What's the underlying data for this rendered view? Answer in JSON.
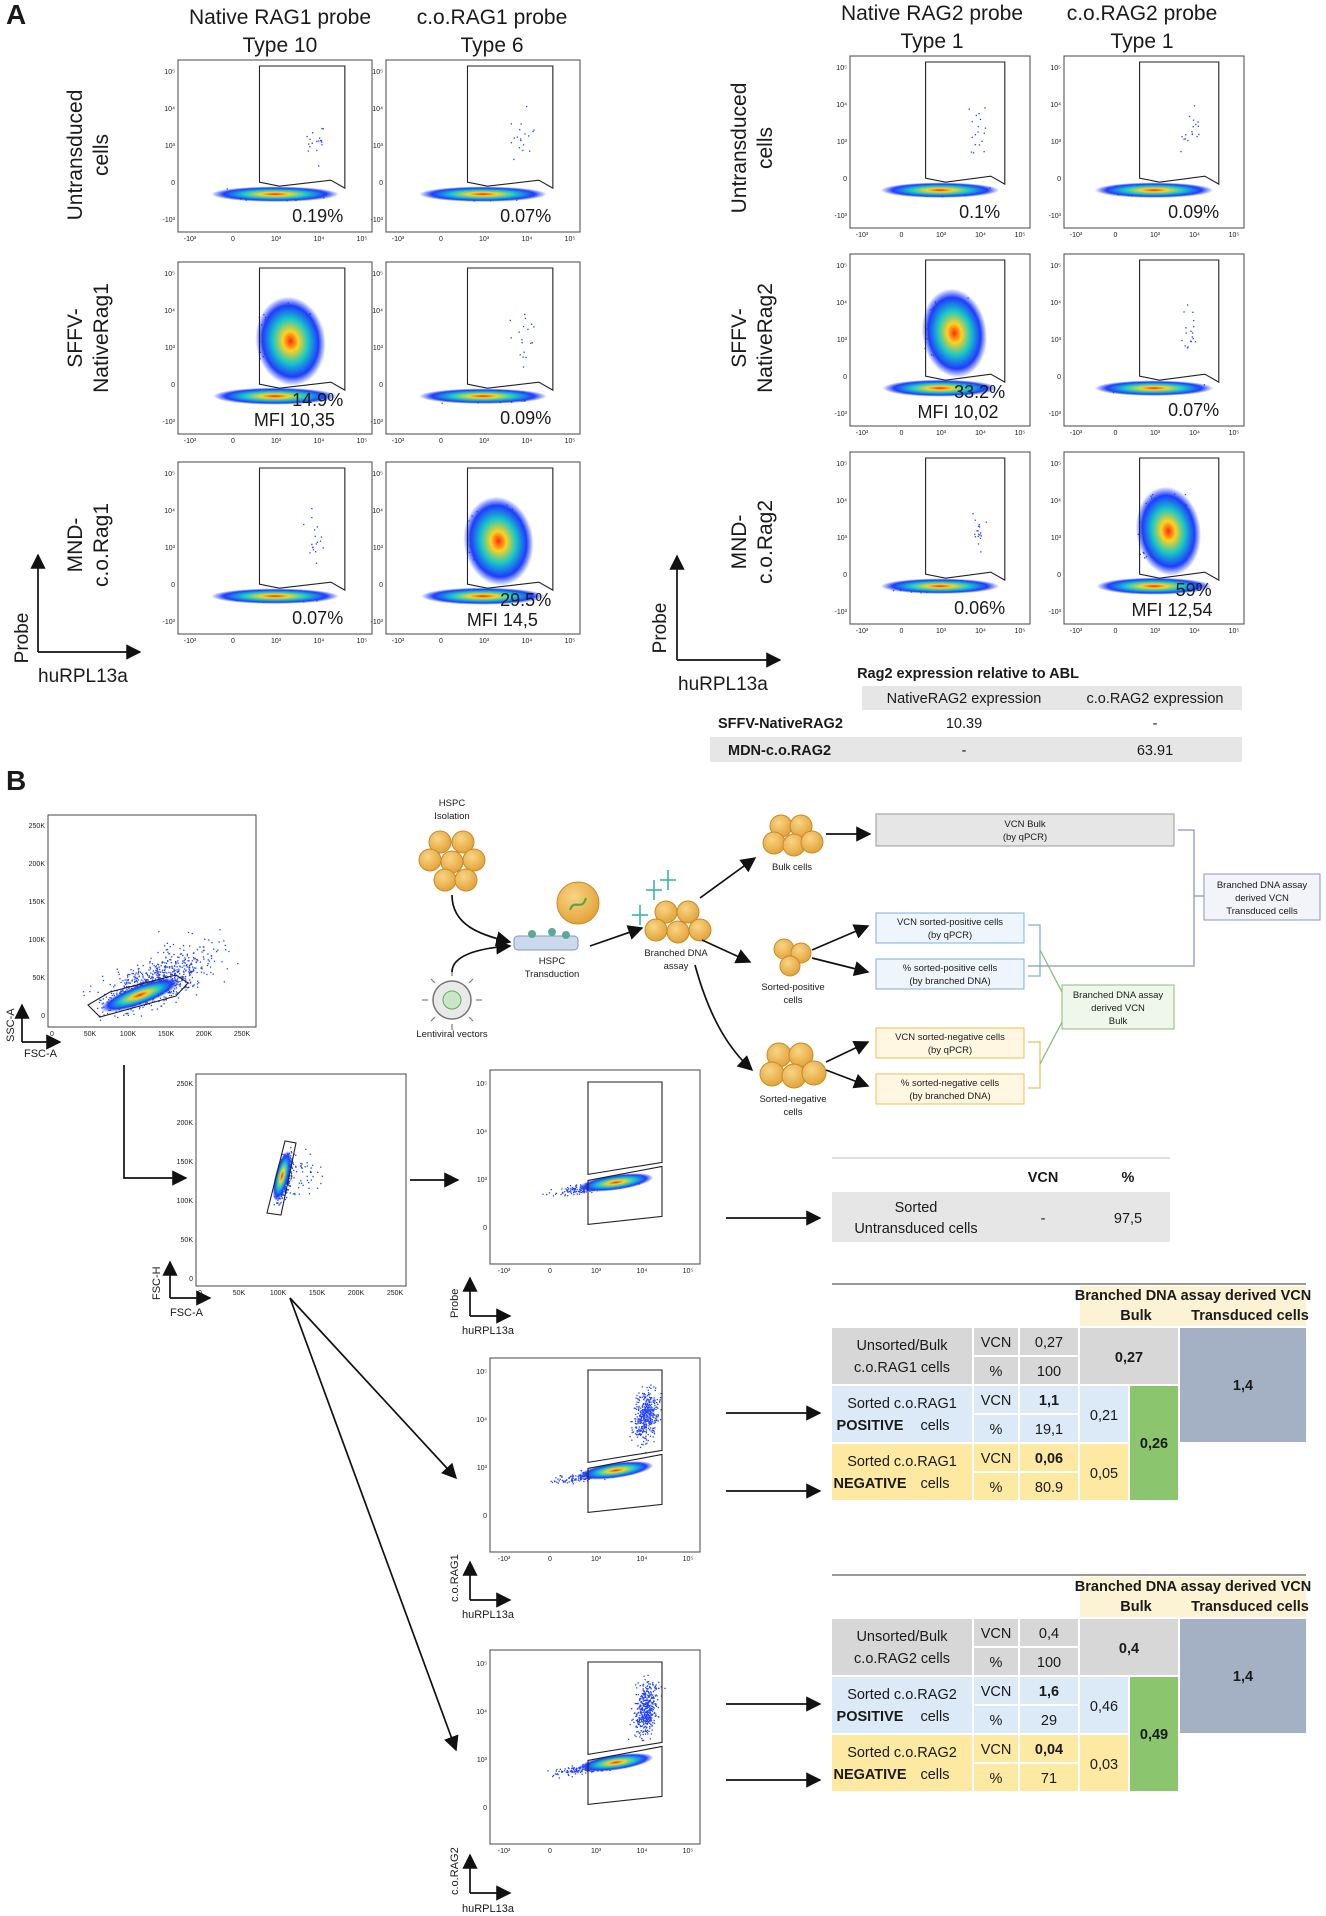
{
  "panel_a": {
    "label": "A",
    "left": {
      "col1_head": [
        "Native RAG1 probe",
        "Type 10"
      ],
      "col2_head": [
        "c.o.RAG1 probe",
        "Type 6"
      ],
      "rows": [
        [
          "Untransduced",
          "cells"
        ],
        [
          "SFFV-",
          "NativeRag1"
        ],
        [
          "MND-",
          "c.o.Rag1"
        ]
      ],
      "cells": [
        [
          {
            "pct": "0.19%"
          },
          {
            "pct": "0.07%"
          }
        ],
        [
          {
            "pct": "14.9%",
            "mfi": "MFI 10,35"
          },
          {
            "pct": "0.09%"
          }
        ],
        [
          {
            "pct": "0.07%"
          },
          {
            "pct": "29.5%",
            "mfi": "MFI 14,5"
          }
        ]
      ],
      "y_axis": "Probe",
      "x_axis": "huRPL13a"
    },
    "right": {
      "col1_head": [
        "Native RAG2 probe",
        "Type 1"
      ],
      "col2_head": [
        "c.o.RAG2 probe",
        "Type 1"
      ],
      "rows": [
        [
          "Untransduced",
          "cells"
        ],
        [
          "SFFV-",
          "NativeRag2"
        ],
        [
          "MND-",
          "c.o.Rag2"
        ]
      ],
      "cells": [
        [
          {
            "pct": "0.1%"
          },
          {
            "pct": "0.09%"
          }
        ],
        [
          {
            "pct": "33.2%",
            "mfi": "MFI 10,02"
          },
          {
            "pct": "0.07%"
          }
        ],
        [
          {
            "pct": "0.06%"
          },
          {
            "pct": "59%",
            "mfi": "MFI 12,54"
          }
        ]
      ],
      "y_axis": "Probe",
      "x_axis": "huRPL13a"
    },
    "rag2_table": {
      "title": "Rag2 expression relative to ABL",
      "headers": [
        "NativeRAG2 expression",
        "c.o.RAG2 expression"
      ],
      "rows": [
        {
          "label": "SFFV-NativeRAG2",
          "v1": "10.39",
          "v2": "-"
        },
        {
          "label": "MDN-c.o.RAG2",
          "v1": "-",
          "v2": "63.91"
        }
      ]
    }
  },
  "panel_b": {
    "label": "B",
    "ticks": {
      "k_y": [
        "250K",
        "200K",
        "150K",
        "100K",
        "50K",
        "0"
      ],
      "k_x": [
        "0",
        "50K",
        "100K",
        "150K",
        "200K",
        "250K"
      ],
      "log_y": [
        "10⁵",
        "10⁴",
        "10³",
        "0",
        "-10³"
      ],
      "log_x": [
        "-10³",
        "0",
        "10³",
        "10⁴",
        "10⁵"
      ]
    },
    "scatter_axes": {
      "p1_y": "SSC-A",
      "p1_x": "FSC-A",
      "p2_y": "FSC-H",
      "p2_x": "FSC-A",
      "p3_y": "Probe",
      "p3_x": "huRPL13a",
      "p4_y": "c.o.RAG1",
      "p4_x": "huRPL13a",
      "p5_y": "c.o.RAG2",
      "p5_x": "huRPL13a"
    },
    "workflow": {
      "hspc_isolation": [
        "HSPC",
        "Isolation"
      ],
      "hspc_transduction": [
        "HSPC",
        "Transduction"
      ],
      "lentiviral": "Lentiviral vectors",
      "branched_dna": [
        "Branched DNA",
        "assay"
      ],
      "bulk_cells": "Bulk cells",
      "sorted_positive": [
        "Sorted-positive",
        "cells"
      ],
      "sorted_negative": [
        "Sorted-negative",
        "cells"
      ],
      "vcn_bulk": [
        "VCN Bulk",
        "(by qPCR)"
      ],
      "vcn_sorted_pos": [
        "VCN sorted-positive cells",
        "(by qPCR)"
      ],
      "pct_sorted_pos": [
        "% sorted-positive cells",
        "(by branched DNA)"
      ],
      "vcn_sorted_neg": [
        "VCN sorted-negative cells",
        "(by qPCR)"
      ],
      "pct_sorted_neg": [
        "% sorted-negative cells",
        "(by branched DNA)"
      ],
      "bdna_bulk": [
        "Branched DNA assay",
        "derived  VCN",
        "Bulk"
      ],
      "bdna_transduced": [
        "Branched DNA assay",
        "derived VCN",
        "Transduced cells"
      ]
    },
    "untransduced_table": {
      "headers": [
        "VCN",
        "%"
      ],
      "label": [
        "Sorted",
        "Untransduced cells"
      ],
      "vcn": "-",
      "pct": "97,5"
    },
    "rag1_table": {
      "header": "Branched DNA assay derived VCN",
      "sub_bulk": "Bulk",
      "sub_transduced": "Transduced cells",
      "rows": [
        {
          "label1": "Unsorted/Bulk",
          "label2": "c.o.RAG1 cells",
          "vcn": "0,27",
          "pct": "100"
        },
        {
          "label1": "Sorted c.o.RAG1",
          "label2": "POSITIVE",
          "label3": "cells",
          "vcn": "1,1",
          "pct": "19,1"
        },
        {
          "label1": "Sorted c.o.RAG1",
          "label2": "NEGATIVE",
          "label3": "cells",
          "vcn": "0,06",
          "pct": "80.9"
        }
      ],
      "vcn_label": "VCN",
      "pct_label": "%",
      "bulk_val": "0,27",
      "pos_val": "0,21",
      "neg_val": "0,05",
      "combined_val": "0,26",
      "transduced_val": "1,4"
    },
    "rag2_table": {
      "header": "Branched DNA assay derived VCN",
      "sub_bulk": "Bulk",
      "sub_transduced": "Transduced cells",
      "rows": [
        {
          "label1": "Unsorted/Bulk",
          "label2": "c.o.RAG2 cells",
          "vcn": "0,4",
          "pct": "100"
        },
        {
          "label1": "Sorted c.o.RAG2",
          "label2": "POSITIVE",
          "label3": "cells",
          "vcn": "1,6",
          "pct": "29"
        },
        {
          "label1": "Sorted c.o.RAG2",
          "label2": "NEGATIVE",
          "label3": "cells",
          "vcn": "0,04",
          "pct": "71"
        }
      ],
      "vcn_label": "VCN",
      "pct_label": "%",
      "bulk_val": "0,4",
      "pos_val": "0,46",
      "neg_val": "0,03",
      "combined_val": "0,49",
      "transduced_val": "1,4"
    }
  },
  "colors": {
    "density_low": "#1e3cff",
    "density_mid": "#18c8c8",
    "density_high": "#ffd21e",
    "density_peak": "#ff2a10",
    "table_gray": "#d7d7d7",
    "table_blue": "#dce9f6",
    "table_yellow": "#fde9a2",
    "table_green": "#8bc56d",
    "table_slate": "#a4b0c4"
  }
}
